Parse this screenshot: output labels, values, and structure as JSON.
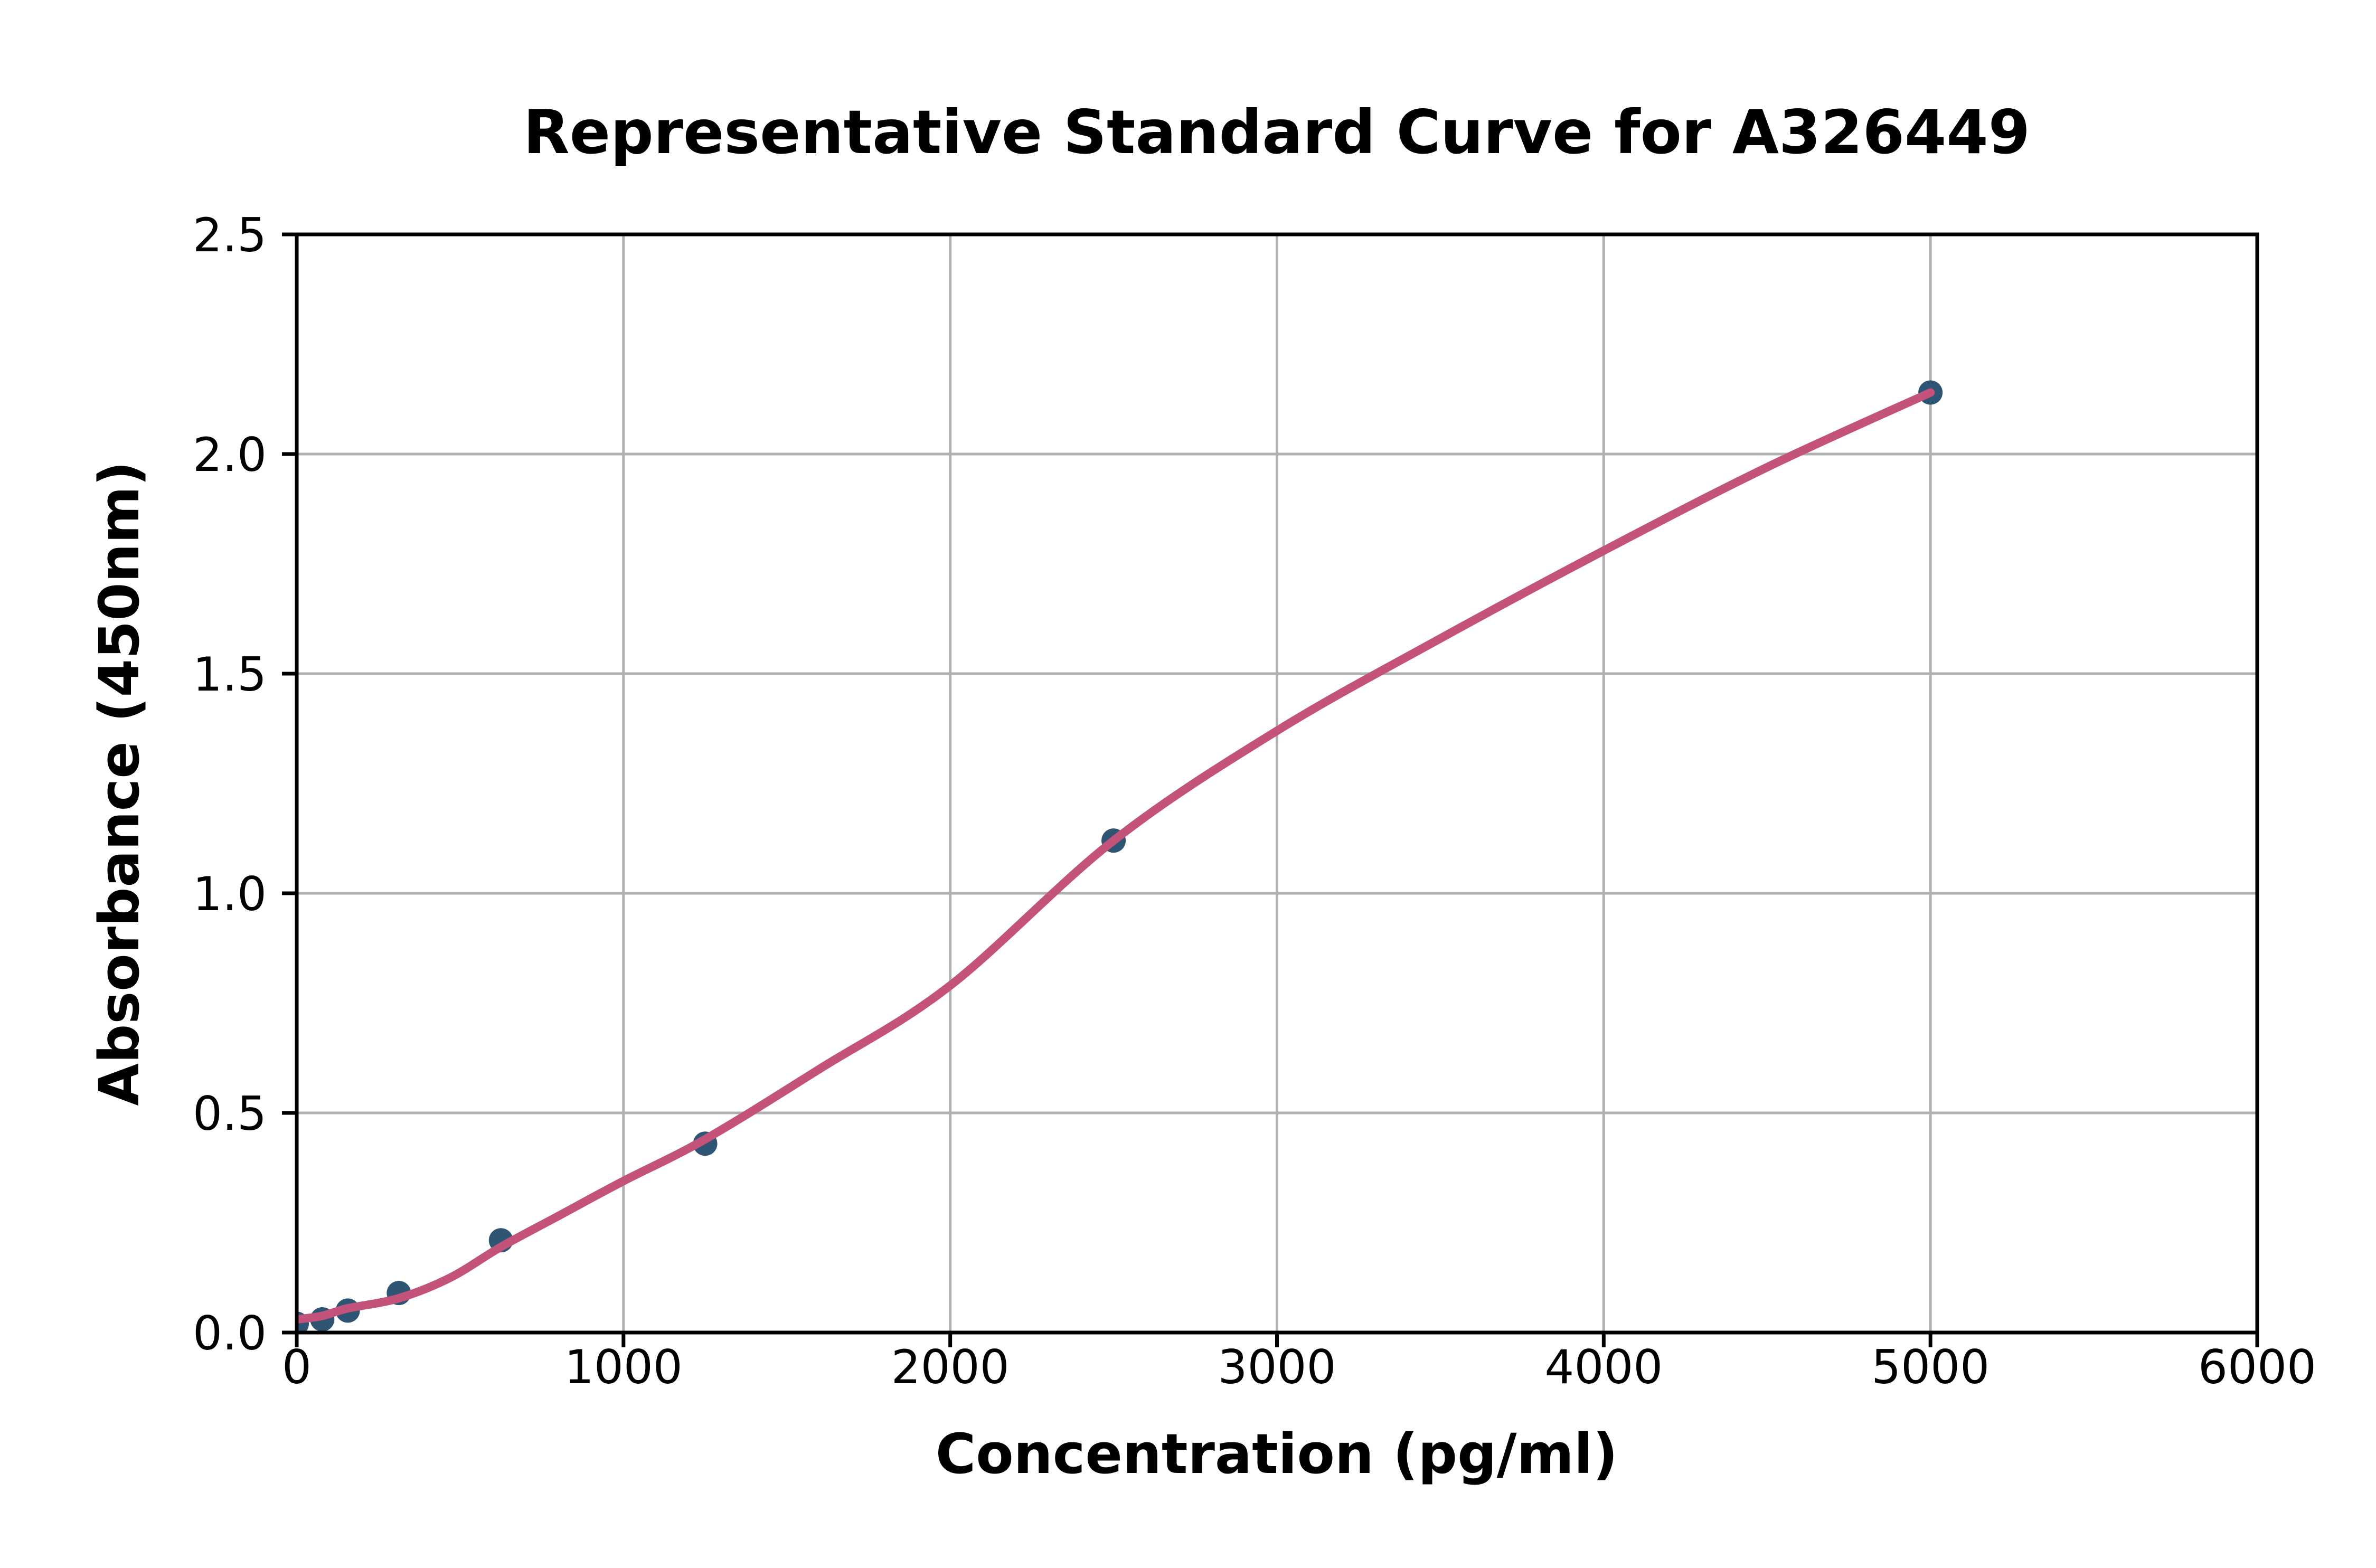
{
  "chart_data": {
    "type": "scatter",
    "title": "Representative Standard Curve for A326449",
    "xlabel": "Concentration (pg/ml)",
    "ylabel": "Absorbance (450nm)",
    "xlim": [
      0,
      6000
    ],
    "ylim": [
      0,
      2.5
    ],
    "x_ticks": [
      0,
      1000,
      2000,
      3000,
      4000,
      5000,
      6000
    ],
    "x_tick_labels": [
      "0",
      "1000",
      "2000",
      "3000",
      "4000",
      "5000",
      "6000"
    ],
    "y_ticks": [
      0.0,
      0.5,
      1.0,
      1.5,
      2.0,
      2.5
    ],
    "y_tick_labels": [
      "0.0",
      "0.5",
      "1.0",
      "1.5",
      "2.0",
      "2.5"
    ],
    "grid": true,
    "legend": "none",
    "series": [
      {
        "name": "standards",
        "style": "scatter",
        "x": [
          0,
          78.1,
          156.2,
          312.5,
          625,
          1250,
          2500,
          5000
        ],
        "y": [
          0.02,
          0.03,
          0.05,
          0.09,
          0.21,
          0.43,
          1.12,
          2.14
        ]
      },
      {
        "name": "fit-curve",
        "style": "line",
        "points": [
          [
            0,
            0.03
          ],
          [
            78,
            0.038
          ],
          [
            156,
            0.055
          ],
          [
            312,
            0.078
          ],
          [
            470,
            0.125
          ],
          [
            625,
            0.195
          ],
          [
            800,
            0.265
          ],
          [
            1000,
            0.345
          ],
          [
            1250,
            0.44
          ],
          [
            1600,
            0.6
          ],
          [
            2000,
            0.79
          ],
          [
            2500,
            1.12
          ],
          [
            3000,
            1.37
          ],
          [
            3500,
            1.58
          ],
          [
            4000,
            1.78
          ],
          [
            4500,
            1.97
          ],
          [
            5000,
            2.14
          ]
        ]
      }
    ],
    "colors": {
      "point": "#2E5574",
      "curve": "#C4537B",
      "grid": "#B0B0B0",
      "axis": "#000000",
      "background": "#FFFFFF"
    }
  }
}
